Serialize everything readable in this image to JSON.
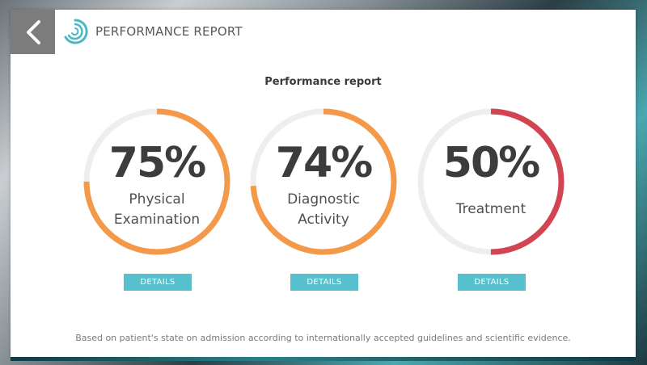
{
  "header": {
    "title": "PERFORMANCE REPORT",
    "back_icon": "chevron-left-icon",
    "logo_icon": "spiral-logo-icon"
  },
  "section_title": "Performance report",
  "gauges": [
    {
      "percent_label": "75%",
      "value": 75,
      "label_line1": "Physical",
      "label_line2": "Examination",
      "color": "#f4994a",
      "track": "#eeeeee"
    },
    {
      "percent_label": "74%",
      "value": 74,
      "label_line1": "Diagnostic",
      "label_line2": "Activity",
      "color": "#f4994a",
      "track": "#eeeeee"
    },
    {
      "percent_label": "50%",
      "value": 50,
      "label_line1": "Treatment",
      "label_line2": "",
      "color": "#d34452",
      "track": "#eeeeee"
    }
  ],
  "details_label": "DETAILS",
  "footnote": "Based on patient's state on admission according to internationally accepted guidelines and scientific evidence.",
  "colors": {
    "accent": "#56c0cf",
    "back_button": "#7c7c7c"
  }
}
